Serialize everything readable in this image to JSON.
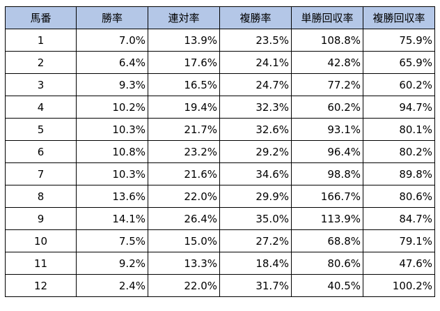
{
  "table": {
    "headers": [
      "馬番",
      "勝率",
      "連対率",
      "複勝率",
      "単勝回収率",
      "複勝回収率"
    ],
    "rows": [
      [
        "1",
        "7.0%",
        "13.9%",
        "23.5%",
        "108.8%",
        "75.9%"
      ],
      [
        "2",
        "6.4%",
        "17.6%",
        "24.1%",
        "42.8%",
        "65.9%"
      ],
      [
        "3",
        "9.3%",
        "16.5%",
        "24.7%",
        "77.2%",
        "60.2%"
      ],
      [
        "4",
        "10.2%",
        "19.4%",
        "32.3%",
        "60.2%",
        "94.7%"
      ],
      [
        "5",
        "10.3%",
        "21.7%",
        "32.6%",
        "93.1%",
        "80.1%"
      ],
      [
        "6",
        "10.8%",
        "23.2%",
        "29.2%",
        "96.4%",
        "80.2%"
      ],
      [
        "7",
        "10.3%",
        "21.6%",
        "34.6%",
        "98.8%",
        "89.8%"
      ],
      [
        "8",
        "13.6%",
        "22.0%",
        "29.9%",
        "166.7%",
        "80.6%"
      ],
      [
        "9",
        "14.1%",
        "26.4%",
        "35.0%",
        "113.9%",
        "84.7%"
      ],
      [
        "10",
        "7.5%",
        "15.0%",
        "27.2%",
        "68.8%",
        "79.1%"
      ],
      [
        "11",
        "9.2%",
        "13.3%",
        "18.4%",
        "80.6%",
        "47.6%"
      ],
      [
        "12",
        "2.4%",
        "22.0%",
        "31.7%",
        "40.5%",
        "100.2%"
      ]
    ]
  },
  "colors": {
    "header_bg": "#b4c7e7",
    "border": "#000000",
    "text": "#000000"
  }
}
